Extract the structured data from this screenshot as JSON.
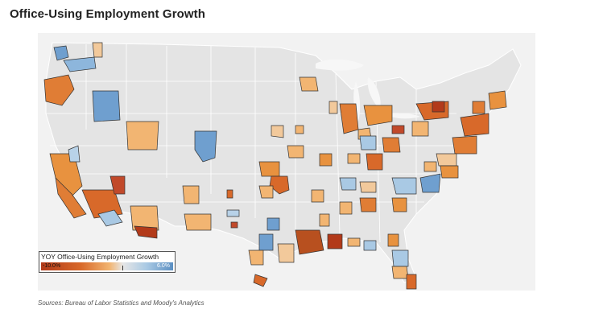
{
  "title": "Office-Using Employment Growth",
  "legend": {
    "title": "YOY Office-Using Employment Growth",
    "min_label": "-10.0%",
    "max_label": "6.0%",
    "colors": [
      "#b23a1a",
      "#d8692a",
      "#f2b572",
      "#e6e6e6",
      "#a9c9e4",
      "#5b8fc2"
    ]
  },
  "source": "Sources: Bureau of Labor Statistics and Moody's Analytics",
  "colors": {
    "map_background": "#f0f0f0",
    "land": "#e4e4e4",
    "borders": "#ffffff",
    "water": "#f7f7f7"
  }
}
